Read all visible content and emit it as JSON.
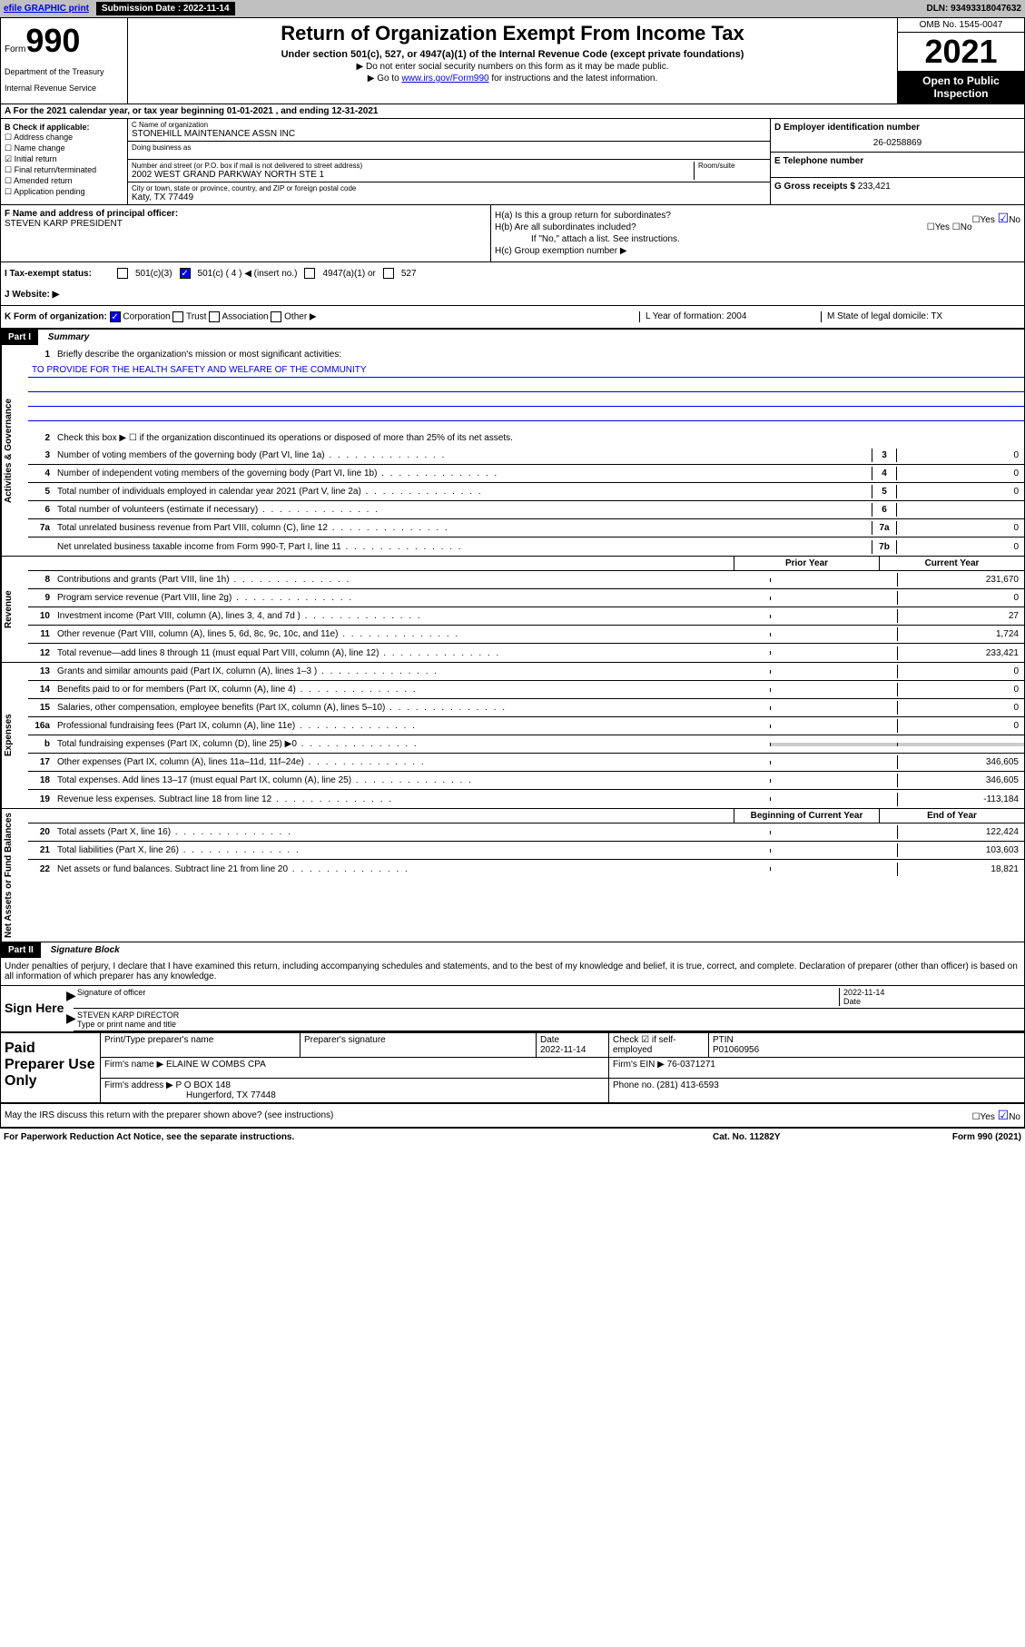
{
  "topbar": {
    "efile_label": "efile GRAPHIC print",
    "submission_label": "Submission Date : 2022-11-14",
    "dln": "DLN: 93493318047632"
  },
  "header": {
    "form_label": "Form",
    "form_number": "990",
    "dept": "Department of the Treasury",
    "irs": "Internal Revenue Service",
    "title": "Return of Organization Exempt From Income Tax",
    "subtitle": "Under section 501(c), 527, or 4947(a)(1) of the Internal Revenue Code (except private foundations)",
    "note1": "▶ Do not enter social security numbers on this form as it may be made public.",
    "note2_pre": "▶ Go to ",
    "note2_link": "www.irs.gov/Form990",
    "note2_post": " for instructions and the latest information.",
    "omb": "OMB No. 1545-0047",
    "year": "2021",
    "inspect": "Open to Public Inspection"
  },
  "row_a": "A For the 2021 calendar year, or tax year beginning 01-01-2021  , and ending 12-31-2021",
  "sec_b": {
    "title": "B Check if applicable:",
    "opts": [
      "☐ Address change",
      "☐ Name change",
      "☑ Initial return",
      "☐ Final return/terminated",
      "☐ Amended return",
      "☐ Application pending"
    ],
    "c_name_lbl": "C Name of organization",
    "c_name": "STONEHILL MAINTENANCE ASSN INC",
    "dba_lbl": "Doing business as",
    "addr_lbl": "Number and street (or P.O. box if mail is not delivered to street address)",
    "room_lbl": "Room/suite",
    "addr": "2002 WEST GRAND PARKWAY NORTH STE 1",
    "city_lbl": "City or town, state or province, country, and ZIP or foreign postal code",
    "city": "Katy, TX  77449",
    "d_lbl": "D Employer identification number",
    "d_val": "26-0258869",
    "e_lbl": "E Telephone number",
    "g_lbl": "G Gross receipts $",
    "g_val": "233,421"
  },
  "sec_fh": {
    "f_lbl": "F Name and address of principal officer:",
    "f_name": "STEVEN KARP PRESIDENT",
    "ha": "H(a)  Is this a group return for subordinates?",
    "hb": "H(b)  Are all subordinates included?",
    "hb_note": "If \"No,\" attach a list. See instructions.",
    "hc": "H(c)  Group exemption number ▶",
    "yes": "Yes",
    "no": "No"
  },
  "row_i": {
    "lbl": "I   Tax-exempt status:",
    "o1": "501(c)(3)",
    "o2": "501(c) ( 4 ) ◀ (insert no.)",
    "o3": "4947(a)(1) or",
    "o4": "527"
  },
  "row_j": "J   Website: ▶",
  "row_k": {
    "lbl": "K Form of organization:",
    "o1": "Corporation",
    "o2": "Trust",
    "o3": "Association",
    "o4": "Other ▶",
    "l": "L Year of formation: 2004",
    "m": "M State of legal domicile: TX"
  },
  "part1": {
    "hdr": "Part I",
    "title": "Summary",
    "tabs": {
      "gov": "Activities & Governance",
      "rev": "Revenue",
      "exp": "Expenses",
      "net": "Net Assets or Fund Balances"
    },
    "line1_lbl": "Briefly describe the organization's mission or most significant activities:",
    "line1_val": "TO PROVIDE FOR THE HEALTH SAFETY AND WELFARE OF THE COMMUNITY",
    "line2": "Check this box ▶ ☐  if the organization discontinued its operations or disposed of more than 25% of its net assets.",
    "rows_gov": [
      {
        "n": "3",
        "t": "Number of voting members of the governing body (Part VI, line 1a)",
        "b": "3",
        "v": "0"
      },
      {
        "n": "4",
        "t": "Number of independent voting members of the governing body (Part VI, line 1b)",
        "b": "4",
        "v": "0"
      },
      {
        "n": "5",
        "t": "Total number of individuals employed in calendar year 2021 (Part V, line 2a)",
        "b": "5",
        "v": "0"
      },
      {
        "n": "6",
        "t": "Total number of volunteers (estimate if necessary)",
        "b": "6",
        "v": ""
      },
      {
        "n": "7a",
        "t": "Total unrelated business revenue from Part VIII, column (C), line 12",
        "b": "7a",
        "v": "0"
      },
      {
        "n": "",
        "t": "Net unrelated business taxable income from Form 990-T, Part I, line 11",
        "b": "7b",
        "v": "0"
      }
    ],
    "col_hdr": {
      "prior": "Prior Year",
      "curr": "Current Year"
    },
    "rows_rev": [
      {
        "n": "8",
        "t": "Contributions and grants (Part VIII, line 1h)",
        "p": "",
        "c": "231,670"
      },
      {
        "n": "9",
        "t": "Program service revenue (Part VIII, line 2g)",
        "p": "",
        "c": "0"
      },
      {
        "n": "10",
        "t": "Investment income (Part VIII, column (A), lines 3, 4, and 7d )",
        "p": "",
        "c": "27"
      },
      {
        "n": "11",
        "t": "Other revenue (Part VIII, column (A), lines 5, 6d, 8c, 9c, 10c, and 11e)",
        "p": "",
        "c": "1,724"
      },
      {
        "n": "12",
        "t": "Total revenue—add lines 8 through 11 (must equal Part VIII, column (A), line 12)",
        "p": "",
        "c": "233,421"
      }
    ],
    "rows_exp": [
      {
        "n": "13",
        "t": "Grants and similar amounts paid (Part IX, column (A), lines 1–3 )",
        "p": "",
        "c": "0"
      },
      {
        "n": "14",
        "t": "Benefits paid to or for members (Part IX, column (A), line 4)",
        "p": "",
        "c": "0"
      },
      {
        "n": "15",
        "t": "Salaries, other compensation, employee benefits (Part IX, column (A), lines 5–10)",
        "p": "",
        "c": "0"
      },
      {
        "n": "16a",
        "t": "Professional fundraising fees (Part IX, column (A), line 11e)",
        "p": "",
        "c": "0"
      },
      {
        "n": "b",
        "t": "Total fundraising expenses (Part IX, column (D), line 25) ▶0",
        "p": "grey",
        "c": "grey"
      },
      {
        "n": "17",
        "t": "Other expenses (Part IX, column (A), lines 11a–11d, 11f–24e)",
        "p": "",
        "c": "346,605"
      },
      {
        "n": "18",
        "t": "Total expenses. Add lines 13–17 (must equal Part IX, column (A), line 25)",
        "p": "",
        "c": "346,605"
      },
      {
        "n": "19",
        "t": "Revenue less expenses. Subtract line 18 from line 12",
        "p": "",
        "c": "-113,184"
      }
    ],
    "col_hdr2": {
      "beg": "Beginning of Current Year",
      "end": "End of Year"
    },
    "rows_net": [
      {
        "n": "20",
        "t": "Total assets (Part X, line 16)",
        "p": "",
        "c": "122,424"
      },
      {
        "n": "21",
        "t": "Total liabilities (Part X, line 26)",
        "p": "",
        "c": "103,603"
      },
      {
        "n": "22",
        "t": "Net assets or fund balances. Subtract line 21 from line 20",
        "p": "",
        "c": "18,821"
      }
    ]
  },
  "part2": {
    "hdr": "Part II",
    "title": "Signature Block",
    "decl": "Under penalties of perjury, I declare that I have examined this return, including accompanying schedules and statements, and to the best of my knowledge and belief, it is true, correct, and complete. Declaration of preparer (other than officer) is based on all information of which preparer has any knowledge.",
    "sign_here": "Sign Here",
    "sig_of_officer": "Signature of officer",
    "sig_date": "2022-11-14",
    "date_lbl": "Date",
    "officer_name": "STEVEN KARP DIRECTOR",
    "officer_lbl": "Type or print name and title",
    "paid": "Paid Preparer Use Only",
    "prep_name_lbl": "Print/Type preparer's name",
    "prep_sig_lbl": "Preparer's signature",
    "prep_date": "2022-11-14",
    "check_if": "Check ☑ if self-employed",
    "ptin_lbl": "PTIN",
    "ptin": "P01060956",
    "firm_name_lbl": "Firm's name    ▶",
    "firm_name": "ELAINE W COMBS CPA",
    "firm_ein_lbl": "Firm's EIN ▶",
    "firm_ein": "76-0371271",
    "firm_addr_lbl": "Firm's address ▶",
    "firm_addr1": "P O BOX 148",
    "firm_addr2": "Hungerford, TX  77448",
    "phone_lbl": "Phone no.",
    "phone": "(281) 413-6593",
    "may_discuss": "May the IRS discuss this return with the preparer shown above? (see instructions)"
  },
  "footer": {
    "l": "For Paperwork Reduction Act Notice, see the separate instructions.",
    "m": "Cat. No. 11282Y",
    "r": "Form 990 (2021)"
  }
}
